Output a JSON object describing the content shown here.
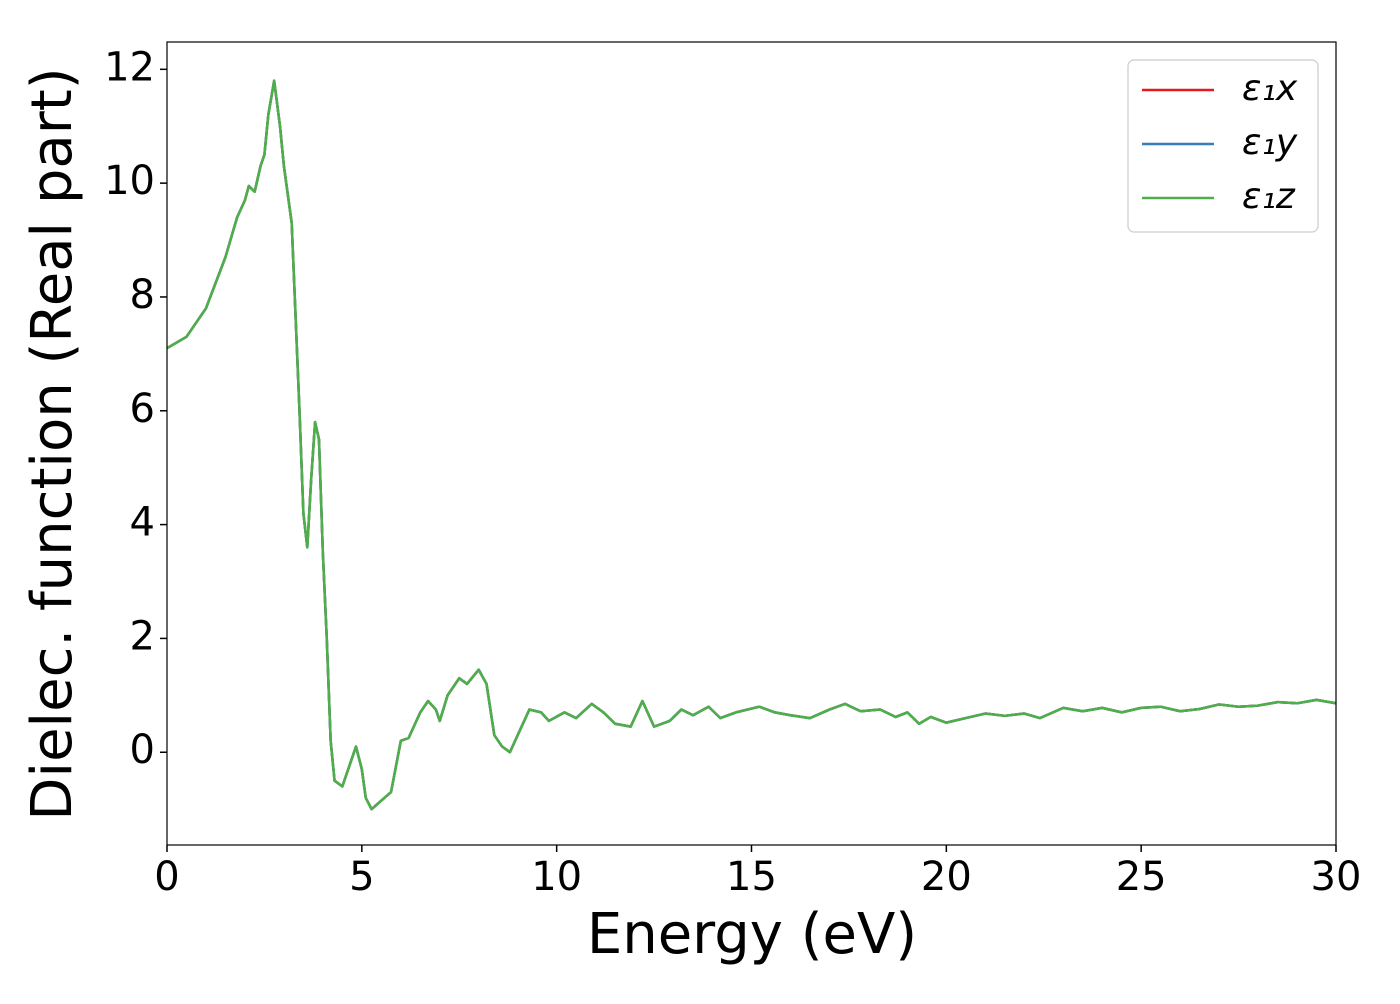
{
  "chart_data": {
    "type": "line",
    "xlabel": "Energy (eV)",
    "ylabel": "Dielec. function (Real part)",
    "x": [
      0,
      0.5,
      1.0,
      1.5,
      1.8,
      2.0,
      2.1,
      2.25,
      2.4,
      2.5,
      2.6,
      2.75,
      2.9,
      3.0,
      3.2,
      3.4,
      3.5,
      3.6,
      3.7,
      3.8,
      3.9,
      4.0,
      4.1,
      4.2,
      4.3,
      4.5,
      4.7,
      4.85,
      5.0,
      5.1,
      5.25,
      5.5,
      5.75,
      6.0,
      6.2,
      6.5,
      6.7,
      6.9,
      7.0,
      7.2,
      7.5,
      7.7,
      8.0,
      8.2,
      8.4,
      8.6,
      8.8,
      9.0,
      9.3,
      9.6,
      9.8,
      10.2,
      10.5,
      10.9,
      11.2,
      11.5,
      11.9,
      12.2,
      12.5,
      12.9,
      13.2,
      13.5,
      13.9,
      14.2,
      14.6,
      15.2,
      15.6,
      16.0,
      16.5,
      17.0,
      17.4,
      17.8,
      18.3,
      18.7,
      19.0,
      19.3,
      19.6,
      20.0,
      20.5,
      21.0,
      21.5,
      22.0,
      22.4,
      23.0,
      23.5,
      24.0,
      24.5,
      25.0,
      25.5,
      26.0,
      26.5,
      27.0,
      27.5,
      28.0,
      28.5,
      29.0,
      29.5,
      30.0
    ],
    "series": [
      {
        "name": "ε₁x",
        "color": "#e41a1c",
        "values": [
          7.1,
          7.3,
          7.8,
          8.7,
          9.4,
          9.7,
          9.95,
          9.85,
          10.3,
          10.5,
          11.2,
          11.8,
          11.0,
          10.3,
          9.3,
          6.0,
          4.2,
          3.6,
          4.8,
          5.8,
          5.5,
          3.5,
          2.0,
          0.2,
          -0.5,
          -0.6,
          -0.2,
          0.1,
          -0.3,
          -0.8,
          -1.0,
          -0.85,
          -0.7,
          0.2,
          0.25,
          0.7,
          0.9,
          0.75,
          0.55,
          1.0,
          1.3,
          1.2,
          1.45,
          1.2,
          0.3,
          0.1,
          0.0,
          0.3,
          0.75,
          0.7,
          0.55,
          0.7,
          0.6,
          0.85,
          0.7,
          0.5,
          0.45,
          0.9,
          0.45,
          0.55,
          0.75,
          0.65,
          0.8,
          0.6,
          0.7,
          0.8,
          0.7,
          0.65,
          0.6,
          0.75,
          0.85,
          0.72,
          0.75,
          0.62,
          0.7,
          0.5,
          0.62,
          0.52,
          0.6,
          0.68,
          0.64,
          0.68,
          0.6,
          0.78,
          0.72,
          0.78,
          0.7,
          0.78,
          0.8,
          0.72,
          0.76,
          0.84,
          0.8,
          0.82,
          0.88,
          0.86,
          0.92,
          0.86
        ]
      },
      {
        "name": "ε₁y",
        "color": "#377eb8",
        "values": [
          7.1,
          7.3,
          7.8,
          8.7,
          9.4,
          9.7,
          9.95,
          9.85,
          10.3,
          10.5,
          11.2,
          11.8,
          11.0,
          10.3,
          9.3,
          6.0,
          4.2,
          3.6,
          4.8,
          5.8,
          5.5,
          3.5,
          2.0,
          0.2,
          -0.5,
          -0.6,
          -0.2,
          0.1,
          -0.3,
          -0.8,
          -1.0,
          -0.85,
          -0.7,
          0.2,
          0.25,
          0.7,
          0.9,
          0.75,
          0.55,
          1.0,
          1.3,
          1.2,
          1.45,
          1.2,
          0.3,
          0.1,
          0.0,
          0.3,
          0.75,
          0.7,
          0.55,
          0.7,
          0.6,
          0.85,
          0.7,
          0.5,
          0.45,
          0.9,
          0.45,
          0.55,
          0.75,
          0.65,
          0.8,
          0.6,
          0.7,
          0.8,
          0.7,
          0.65,
          0.6,
          0.75,
          0.85,
          0.72,
          0.75,
          0.62,
          0.7,
          0.5,
          0.62,
          0.52,
          0.6,
          0.68,
          0.64,
          0.68,
          0.6,
          0.78,
          0.72,
          0.78,
          0.7,
          0.78,
          0.8,
          0.72,
          0.76,
          0.84,
          0.8,
          0.82,
          0.88,
          0.86,
          0.92,
          0.86
        ]
      },
      {
        "name": "ε₁z",
        "color": "#4daf4a",
        "values": [
          7.1,
          7.3,
          7.8,
          8.7,
          9.4,
          9.7,
          9.95,
          9.85,
          10.3,
          10.5,
          11.2,
          11.8,
          11.0,
          10.3,
          9.3,
          6.0,
          4.2,
          3.6,
          4.8,
          5.8,
          5.5,
          3.5,
          2.0,
          0.2,
          -0.5,
          -0.6,
          -0.2,
          0.1,
          -0.3,
          -0.8,
          -1.0,
          -0.85,
          -0.7,
          0.2,
          0.25,
          0.7,
          0.9,
          0.75,
          0.55,
          1.0,
          1.3,
          1.2,
          1.45,
          1.2,
          0.3,
          0.1,
          0.0,
          0.3,
          0.75,
          0.7,
          0.55,
          0.7,
          0.6,
          0.85,
          0.7,
          0.5,
          0.45,
          0.9,
          0.45,
          0.55,
          0.75,
          0.65,
          0.8,
          0.6,
          0.7,
          0.8,
          0.7,
          0.65,
          0.6,
          0.75,
          0.85,
          0.72,
          0.75,
          0.62,
          0.7,
          0.5,
          0.62,
          0.52,
          0.6,
          0.68,
          0.64,
          0.68,
          0.6,
          0.78,
          0.72,
          0.78,
          0.7,
          0.78,
          0.8,
          0.72,
          0.76,
          0.84,
          0.8,
          0.82,
          0.88,
          0.86,
          0.92,
          0.86
        ]
      }
    ],
    "xlim": [
      0,
      30
    ],
    "xticks": [
      0,
      5,
      10,
      15,
      20,
      25,
      30
    ],
    "ylim": [
      -1.63,
      12.48
    ],
    "yticks": [
      0,
      2,
      4,
      6,
      8,
      10,
      12
    ],
    "grid": false,
    "legend": "upper right"
  }
}
